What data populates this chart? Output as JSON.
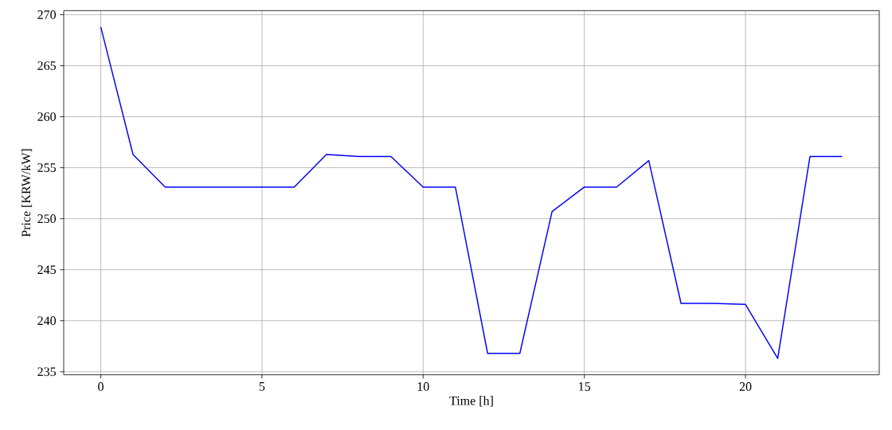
{
  "chart_data": {
    "type": "line",
    "xlabel": "Time [h]",
    "ylabel": "Price [KRW/kW]",
    "x": [
      0,
      1,
      2,
      3,
      4,
      5,
      6,
      7,
      8,
      9,
      10,
      11,
      12,
      13,
      14,
      15,
      16,
      17,
      18,
      19,
      20,
      21,
      22,
      23
    ],
    "series": [
      {
        "color": "#0000ff",
        "values": [
          268.8,
          256.3,
          253.1,
          253.1,
          253.1,
          253.1,
          253.1,
          256.3,
          256.1,
          256.1,
          253.1,
          253.1,
          236.8,
          236.8,
          250.7,
          253.1,
          253.1,
          255.7,
          241.7,
          241.7,
          241.6,
          236.3,
          256.1,
          256.1
        ]
      }
    ],
    "xlim": [
      -1.15,
      24.15
    ],
    "ylim": [
      234.7,
      270.4
    ],
    "xticks": [
      0,
      5,
      10,
      15,
      20
    ],
    "yticks": [
      235,
      240,
      245,
      250,
      255,
      260,
      265,
      270
    ],
    "grid": true,
    "marker": "none",
    "line_style": "solid"
  }
}
